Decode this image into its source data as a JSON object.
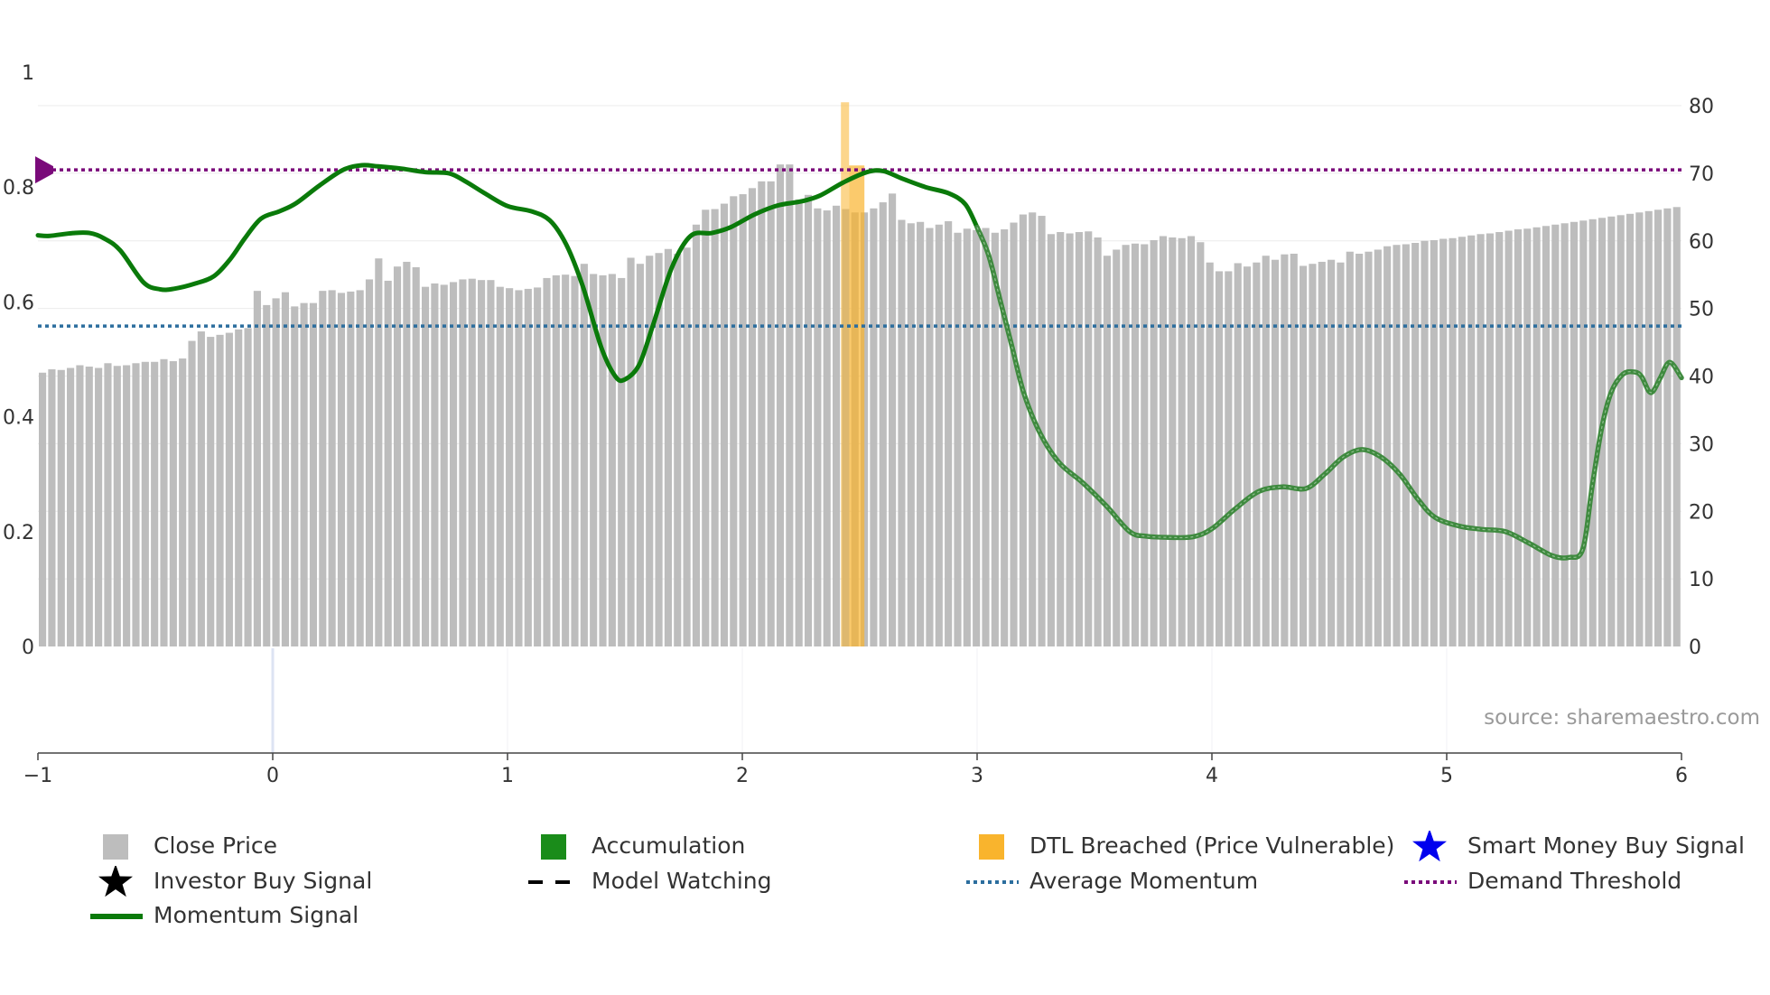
{
  "chart_data": {
    "type": "bar+line",
    "title": "",
    "source": "source: sharemaestro.com",
    "x_axis": {
      "range": [
        -1,
        6
      ],
      "ticks": [
        "−1",
        "0",
        "1",
        "2",
        "3",
        "4",
        "5",
        "6"
      ]
    },
    "left_axis": {
      "range": [
        0,
        1
      ],
      "ticks": [
        "0",
        "0.2",
        "0.4",
        "0.6",
        "0.8",
        "1"
      ]
    },
    "right_axis": {
      "range": [
        0,
        80
      ],
      "ticks": [
        "0",
        "10",
        "20",
        "30",
        "40",
        "50",
        "60",
        "70",
        "80"
      ]
    },
    "colors": {
      "close_price": "#bdbdbd",
      "accumulation": "#1a8c1a",
      "dtl_breached": "#f9b42d",
      "smart_money": "#0000ee",
      "investor": "#000000",
      "momentum": "#0a7a0a",
      "average_momentum": "#2c6e9e",
      "demand_threshold": "#7a0a7a"
    },
    "series": [
      {
        "name": "Close Price",
        "axis": "right",
        "values": [
          40.5,
          41,
          40.9,
          41.2,
          41.6,
          41.4,
          41.2,
          41.9,
          41.5,
          41.6,
          41.9,
          42.1,
          42.1,
          42.5,
          42.2,
          42.6,
          45.2,
          46.6,
          45.8,
          46.1,
          46.4,
          46.9,
          47.1,
          52.6,
          50.5,
          51.5,
          52.4,
          50.3,
          50.8,
          50.8,
          52.6,
          52.7,
          52.3,
          52.5,
          52.7,
          54.3,
          57.4,
          54.1,
          56.2,
          56.9,
          56.1,
          53.2,
          53.7,
          53.5,
          53.9,
          54.3,
          54.4,
          54.2,
          54.2,
          53.2,
          53,
          52.7,
          52.9,
          53.1,
          54.5,
          54.9,
          55,
          54.8,
          56.6,
          55.1,
          54.9,
          55.1,
          54.5,
          57.5,
          56.6,
          57.8,
          58.2,
          58.8,
          58.1,
          59,
          62.4,
          64.6,
          64.7,
          65.5,
          66.6,
          66.9,
          67.8,
          68.8,
          68.8,
          71.3,
          71.3,
          66.1,
          66.8,
          64.8,
          64.5,
          65.2,
          64.7,
          64.2,
          64.2,
          64.8,
          65.7,
          67,
          63.1,
          62.6,
          62.8,
          61.9,
          62.4,
          62.9,
          61.2,
          61.8,
          61.6,
          61.9,
          61.2,
          61.7,
          62.7,
          63.9,
          64.2,
          63.7,
          61,
          61.3,
          61.1,
          61.3,
          61.4,
          60.5,
          57.8,
          58.7,
          59.4,
          59.6,
          59.5,
          60.1,
          60.7,
          60.5,
          60.4,
          60.7,
          59.8,
          56.8,
          55.5,
          55.5,
          56.7,
          56.2,
          56.8,
          57.8,
          57.2,
          58,
          58.1,
          56.3,
          56.6,
          56.9,
          57.2,
          56.8,
          58.4,
          58.1,
          58.4,
          58.7,
          59.2,
          59.4,
          59.5,
          59.7,
          60,
          60.1,
          60.3,
          60.4,
          60.6,
          60.8,
          61,
          61.1,
          61.3,
          61.5,
          61.7,
          61.8,
          62,
          62.2,
          62.4,
          62.6,
          62.8,
          63,
          63.2,
          63.4,
          63.6,
          63.8,
          64,
          64.2,
          64.4,
          64.6,
          64.8,
          65
        ]
      },
      {
        "name": "Momentum Signal",
        "axis": "left",
        "points": [
          [
            -1,
            0.716
          ],
          [
            -0.95,
            0.715
          ],
          [
            -0.85,
            0.72
          ],
          [
            -0.78,
            0.72
          ],
          [
            -0.72,
            0.711
          ],
          [
            -0.65,
            0.69
          ],
          [
            -0.55,
            0.634
          ],
          [
            -0.48,
            0.622
          ],
          [
            -0.42,
            0.623
          ],
          [
            -0.33,
            0.632
          ],
          [
            -0.25,
            0.645
          ],
          [
            -0.18,
            0.675
          ],
          [
            -0.12,
            0.71
          ],
          [
            -0.05,
            0.745
          ],
          [
            0.03,
            0.758
          ],
          [
            0.1,
            0.772
          ],
          [
            0.2,
            0.803
          ],
          [
            0.3,
            0.83
          ],
          [
            0.38,
            0.838
          ],
          [
            0.45,
            0.836
          ],
          [
            0.55,
            0.832
          ],
          [
            0.65,
            0.826
          ],
          [
            0.75,
            0.824
          ],
          [
            0.82,
            0.81
          ],
          [
            0.9,
            0.79
          ],
          [
            1,
            0.767
          ],
          [
            1.1,
            0.758
          ],
          [
            1.18,
            0.742
          ],
          [
            1.25,
            0.7
          ],
          [
            1.32,
            0.628
          ],
          [
            1.4,
            0.52
          ],
          [
            1.46,
            0.47
          ],
          [
            1.5,
            0.465
          ],
          [
            1.56,
            0.49
          ],
          [
            1.62,
            0.56
          ],
          [
            1.7,
            0.66
          ],
          [
            1.78,
            0.715
          ],
          [
            1.87,
            0.72
          ],
          [
            1.95,
            0.73
          ],
          [
            2.05,
            0.752
          ],
          [
            2.15,
            0.768
          ],
          [
            2.25,
            0.775
          ],
          [
            2.33,
            0.785
          ],
          [
            2.43,
            0.808
          ],
          [
            2.53,
            0.826
          ],
          [
            2.6,
            0.828
          ],
          [
            2.68,
            0.815
          ],
          [
            2.78,
            0.8
          ],
          [
            2.88,
            0.789
          ],
          [
            2.95,
            0.77
          ],
          [
            3,
            0.73
          ],
          [
            3.05,
            0.68
          ],
          [
            3.1,
            0.6
          ],
          [
            3.15,
            0.52
          ],
          [
            3.2,
            0.44
          ],
          [
            3.27,
            0.37
          ],
          [
            3.35,
            0.32
          ],
          [
            3.45,
            0.285
          ],
          [
            3.55,
            0.245
          ],
          [
            3.65,
            0.2
          ],
          [
            3.72,
            0.192
          ],
          [
            3.82,
            0.19
          ],
          [
            3.92,
            0.191
          ],
          [
            4,
            0.205
          ],
          [
            4.1,
            0.24
          ],
          [
            4.2,
            0.27
          ],
          [
            4.3,
            0.278
          ],
          [
            4.4,
            0.275
          ],
          [
            4.48,
            0.3
          ],
          [
            4.56,
            0.33
          ],
          [
            4.64,
            0.343
          ],
          [
            4.72,
            0.33
          ],
          [
            4.8,
            0.3
          ],
          [
            4.88,
            0.255
          ],
          [
            4.95,
            0.225
          ],
          [
            5.05,
            0.21
          ],
          [
            5.15,
            0.204
          ],
          [
            5.25,
            0.2
          ],
          [
            5.35,
            0.18
          ],
          [
            5.45,
            0.158
          ],
          [
            5.52,
            0.155
          ],
          [
            5.58,
            0.17
          ],
          [
            5.62,
            0.28
          ],
          [
            5.66,
            0.38
          ],
          [
            5.7,
            0.442
          ],
          [
            5.75,
            0.474
          ],
          [
            5.8,
            0.478
          ],
          [
            5.83,
            0.47
          ],
          [
            5.86,
            0.445
          ],
          [
            5.88,
            0.445
          ],
          [
            5.91,
            0.468
          ],
          [
            5.95,
            0.495
          ],
          [
            6,
            0.468
          ]
        ],
        "solid_until_x": 3.0
      },
      {
        "name": "Average Momentum",
        "axis": "left",
        "value": 0.558
      },
      {
        "name": "Demand Threshold",
        "axis": "left",
        "value": 0.83
      },
      {
        "name": "DTL Breached (Price Vulnerable)",
        "axis": "right",
        "x_range": [
          2.42,
          2.52
        ],
        "value": 80.5
      }
    ],
    "legend": [
      {
        "label": "Close Price",
        "symbol": "square-grey"
      },
      {
        "label": "Accumulation",
        "symbol": "square-green"
      },
      {
        "label": "DTL Breached (Price Vulnerable)",
        "symbol": "square-orange"
      },
      {
        "label": "Smart Money Buy Signal",
        "symbol": "star-blue"
      },
      {
        "label": "Investor Buy Signal",
        "symbol": "star-black"
      },
      {
        "label": "Model Watching",
        "symbol": "dash-black"
      },
      {
        "label": "Average Momentum",
        "symbol": "dot-blue"
      },
      {
        "label": "Demand Threshold",
        "symbol": "dot-purple"
      },
      {
        "label": "Momentum Signal",
        "symbol": "line-green"
      }
    ]
  }
}
